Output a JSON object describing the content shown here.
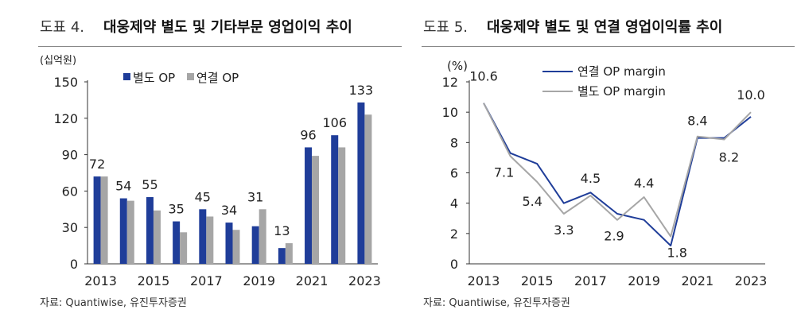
{
  "colors": {
    "standalone": "#1f3d99",
    "consolidated": "#a6a6a6",
    "rule": "#888888"
  },
  "left": {
    "fig_num": "도표 4.",
    "title": "대웅제약 별도 및 기타부문 영업이익 추이",
    "source": "자료: Quantiwise, 유진투자증권"
  },
  "right": {
    "fig_num": "도표 5.",
    "title": "대웅제약 별도 및 연결 영업이익률 추이",
    "source": "자료: Quantiwise, 유진투자증권"
  },
  "chart_data": [
    {
      "type": "bar",
      "unit_label": "(십억원)",
      "categories": [
        "2013",
        "2014",
        "2015",
        "2016",
        "2017",
        "2018",
        "2019",
        "2020",
        "2021",
        "2022",
        "2023"
      ],
      "x_tick_labels": [
        "2013",
        "2015",
        "2017",
        "2019",
        "2021",
        "2023"
      ],
      "series": [
        {
          "name": "별도 OP",
          "values": [
            72,
            54,
            55,
            35,
            45,
            34,
            31,
            13,
            96,
            106,
            133
          ],
          "data_labels": [
            "72",
            "54",
            "55",
            "35",
            "45",
            "34",
            "31",
            "13",
            "96",
            "106",
            "133"
          ]
        },
        {
          "name": "연결 OP",
          "values": [
            72,
            52,
            44,
            26,
            39,
            28,
            45,
            17,
            89,
            96,
            123
          ]
        }
      ],
      "ylim": [
        0,
        150
      ],
      "yticks": [
        0,
        30,
        60,
        90,
        120,
        150
      ],
      "legend_position": "top-left"
    },
    {
      "type": "line",
      "unit_label": "(%)",
      "x": [
        2013,
        2014,
        2015,
        2016,
        2017,
        2018,
        2019,
        2020,
        2021,
        2022,
        2023
      ],
      "x_tick_labels": [
        "2013",
        "2015",
        "2017",
        "2019",
        "2021",
        "2023"
      ],
      "series": [
        {
          "name": "연결 OP margin",
          "values": [
            10.6,
            7.3,
            6.6,
            4.0,
            4.7,
            3.3,
            2.9,
            1.2,
            8.3,
            8.3,
            9.7
          ]
        },
        {
          "name": "별도 OP margin",
          "values": [
            10.6,
            7.1,
            5.4,
            3.3,
            4.5,
            2.9,
            4.4,
            1.8,
            8.4,
            8.2,
            10.0
          ]
        }
      ],
      "annotations": [
        "10.6",
        "7.1",
        "5.4",
        "3.3",
        "4.5",
        "2.9",
        "4.4",
        "1.8",
        "8.4",
        "8.2",
        "10.0"
      ],
      "ylim": [
        0,
        12
      ],
      "yticks": [
        0,
        2,
        4,
        6,
        8,
        10,
        12
      ],
      "legend_position": "top-left"
    }
  ]
}
